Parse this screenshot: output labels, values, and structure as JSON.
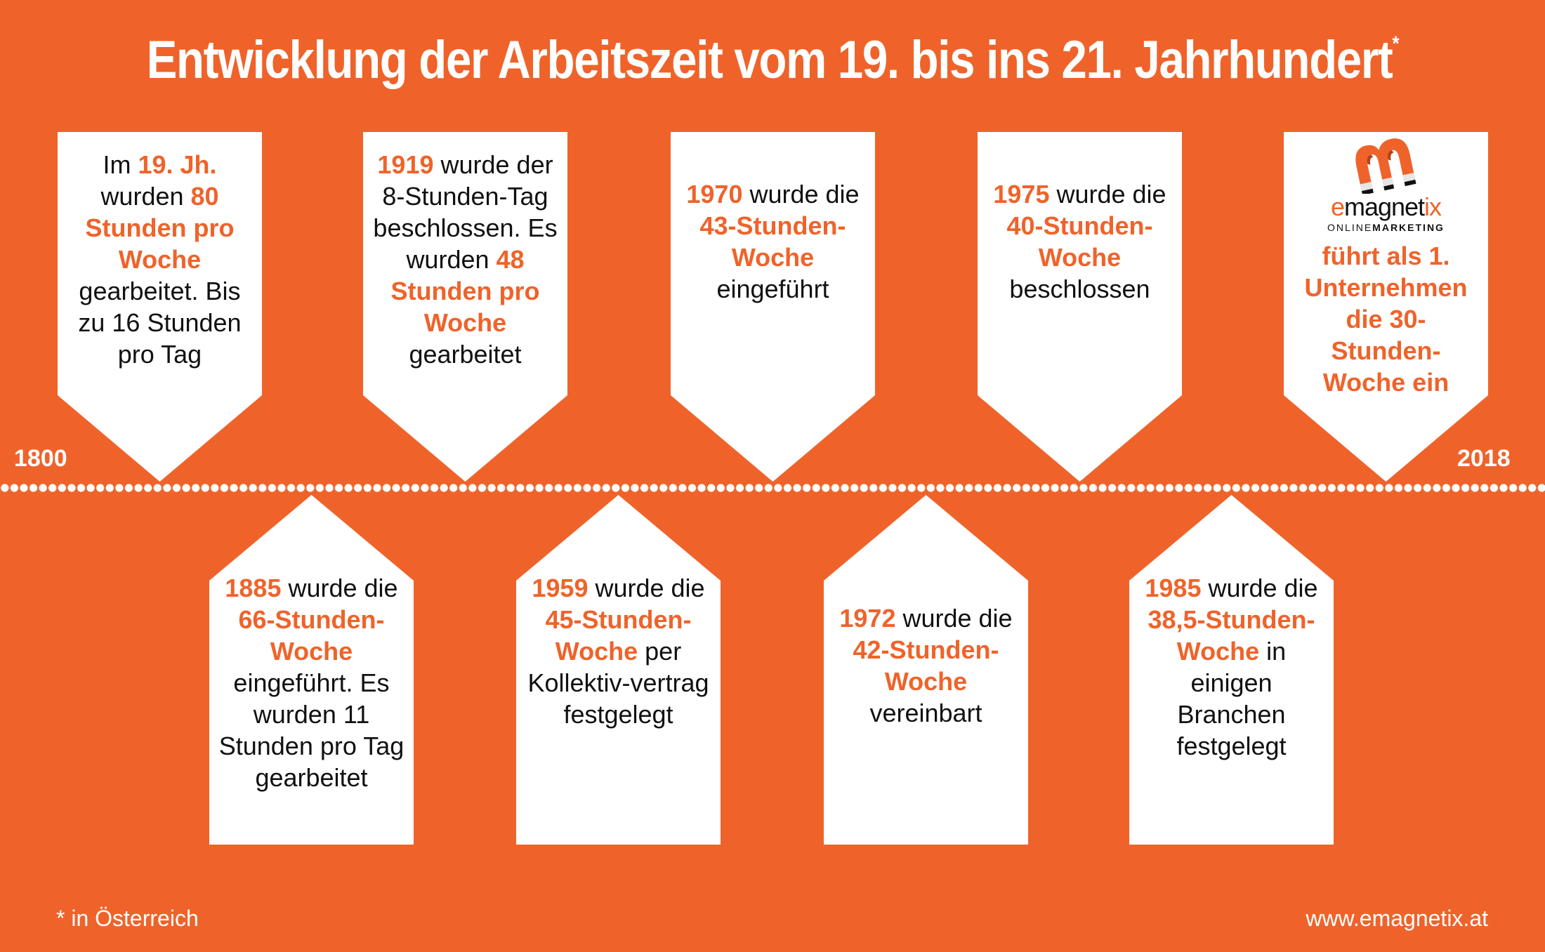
{
  "title": {
    "text": "Entwicklung der Arbeitszeit vom 19. bis ins 21. Jahrhundert",
    "footnote_marker": "*"
  },
  "colors": {
    "background": "#ef632a",
    "card": "#ffffff",
    "highlight": "#ef632a",
    "text": "#111111"
  },
  "timeline": {
    "start_label": "1800",
    "end_label": "2018"
  },
  "top_cards": [
    {
      "year": "19. Jh.",
      "segments": [
        {
          "t": "Im ",
          "hl": false
        },
        {
          "t": "19. Jh.",
          "hl": true
        },
        {
          "t": " wurden ",
          "hl": false
        },
        {
          "t": "80 Stunden pro Woche",
          "hl": true
        },
        {
          "t": " gearbeitet. Bis zu 16 Stunden pro Tag",
          "hl": false
        }
      ]
    },
    {
      "year": "1919",
      "segments": [
        {
          "t": "1919",
          "hl": true
        },
        {
          "t": " wurde der 8-Stunden-Tag beschlossen. Es wurden ",
          "hl": false
        },
        {
          "t": "48 Stunden pro Woche",
          "hl": true
        },
        {
          "t": " gearbeitet",
          "hl": false
        }
      ]
    },
    {
      "year": "1970",
      "segments": [
        {
          "t": "1970",
          "hl": true
        },
        {
          "t": " wurde die ",
          "hl": false
        },
        {
          "t": "43-Stunden-Woche",
          "hl": true
        },
        {
          "t": " eingeführt",
          "hl": false
        }
      ]
    },
    {
      "year": "1975",
      "segments": [
        {
          "t": "1975",
          "hl": true
        },
        {
          "t": " wurde die ",
          "hl": false
        },
        {
          "t": "40-Stunden-Woche",
          "hl": true
        },
        {
          "t": " beschlossen",
          "hl": false
        }
      ]
    },
    {
      "year": "2018",
      "logo": {
        "word_prefix": "e",
        "word_middle": "magnet",
        "word_suffix": "ix",
        "sub_light": "ONLINE",
        "sub_bold": "MARKETING"
      },
      "segments": [
        {
          "t": "führt als 1. Unternehmen die 30-Stunden-Woche ein",
          "hl": true
        }
      ]
    }
  ],
  "bottom_cards": [
    {
      "year": "1885",
      "segments": [
        {
          "t": "1885",
          "hl": true
        },
        {
          "t": " wurde die ",
          "hl": false
        },
        {
          "t": "66-Stunden-Woche",
          "hl": true
        },
        {
          "t": " eingeführt. Es wurden 11 Stunden pro Tag gearbeitet",
          "hl": false
        }
      ]
    },
    {
      "year": "1959",
      "segments": [
        {
          "t": "1959",
          "hl": true
        },
        {
          "t": " wurde die ",
          "hl": false
        },
        {
          "t": "45-Stunden-Woche",
          "hl": true
        },
        {
          "t": " per Kollektiv-vertrag festgelegt",
          "hl": false
        }
      ]
    },
    {
      "year": "1972",
      "segments": [
        {
          "t": "1972",
          "hl": true
        },
        {
          "t": " wurde die ",
          "hl": false
        },
        {
          "t": "42-Stunden-Woche",
          "hl": true
        },
        {
          "t": " vereinbart",
          "hl": false
        }
      ]
    },
    {
      "year": "1985",
      "segments": [
        {
          "t": "1985",
          "hl": true
        },
        {
          "t": " wurde die ",
          "hl": false
        },
        {
          "t": "38,5-Stunden-Woche",
          "hl": true
        },
        {
          "t": " in einigen Branchen festgelegt",
          "hl": false
        }
      ]
    }
  ],
  "footer": {
    "note": "* in Österreich",
    "url": "www.emagnetix.at"
  }
}
